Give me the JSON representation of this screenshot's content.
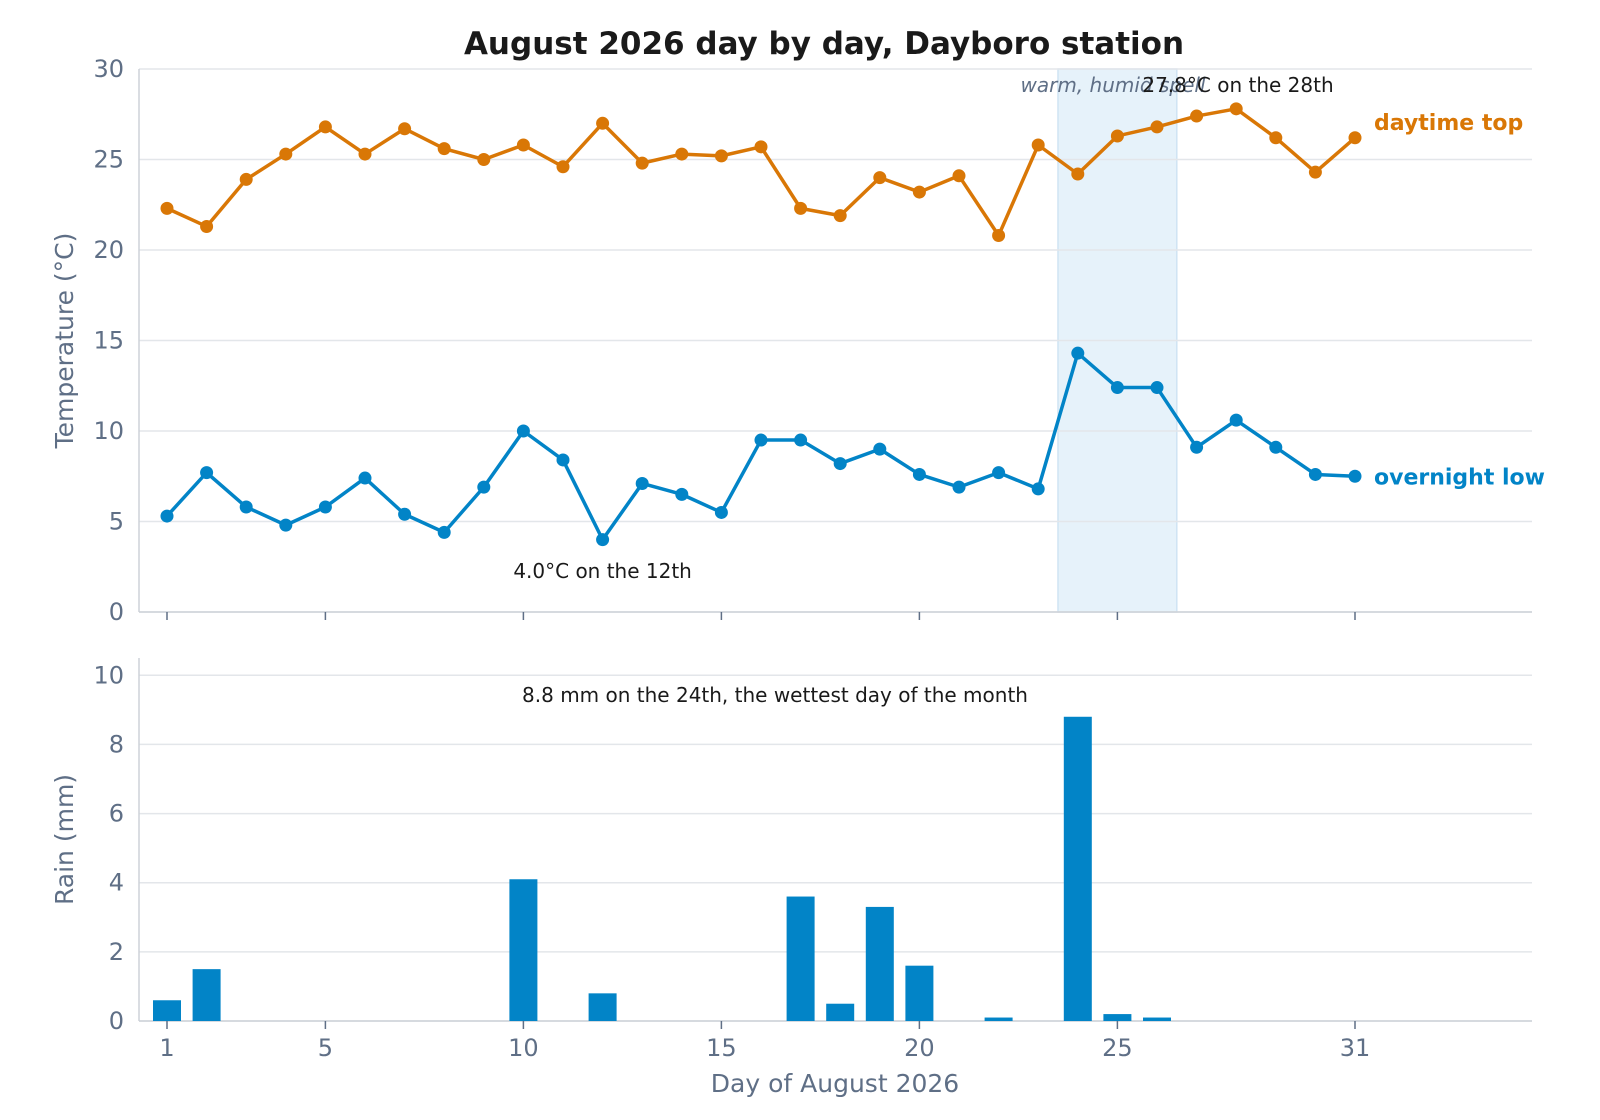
{
  "chart_data": [
    {
      "type": "line",
      "title": "August 2026 day by day, Dayboro station",
      "ylabel": "Temperature (°C)",
      "ylim": [
        0,
        30
      ],
      "yticks": [
        0,
        5,
        10,
        15,
        20,
        25,
        30
      ],
      "x": [
        1,
        2,
        3,
        4,
        5,
        6,
        7,
        8,
        9,
        10,
        11,
        12,
        13,
        14,
        15,
        16,
        17,
        18,
        19,
        20,
        21,
        22,
        23,
        24,
        25,
        26,
        27,
        28,
        29,
        30,
        31
      ],
      "series": [
        {
          "name": "daytime top",
          "color": "#d97706",
          "values": [
            22.3,
            21.3,
            23.9,
            25.3,
            26.8,
            25.3,
            26.7,
            25.6,
            25.0,
            25.8,
            24.6,
            27.0,
            24.8,
            25.3,
            25.2,
            25.7,
            22.3,
            21.9,
            24.0,
            23.2,
            24.1,
            20.8,
            25.8,
            24.2,
            26.3,
            26.8,
            27.4,
            27.8,
            26.2,
            24.3,
            26.2
          ]
        },
        {
          "name": "overnight low",
          "color": "#0284c7",
          "values": [
            5.3,
            7.7,
            5.8,
            4.8,
            5.8,
            7.4,
            5.4,
            4.4,
            6.9,
            10.0,
            8.4,
            4.0,
            7.1,
            6.5,
            5.5,
            9.5,
            9.5,
            8.2,
            9.0,
            7.6,
            6.9,
            7.7,
            6.8,
            14.3,
            12.4,
            12.4,
            9.1,
            10.6,
            9.1,
            7.6,
            7.5
          ]
        }
      ],
      "shaded_band": {
        "x_range": [
          23.5,
          26.5
        ],
        "label": "warm, humid spell",
        "color": "#e6f2fa"
      },
      "annotations": [
        {
          "text": "27.8°C on the 28th",
          "x": 28,
          "y": 27.8
        },
        {
          "text": "4.0°C on the 12th",
          "x": 12,
          "y": 4.0
        }
      ],
      "grid": true,
      "legend": "inline labels at right end of each line"
    },
    {
      "type": "bar",
      "xlabel": "Day of August 2026",
      "ylabel": "Rain (mm)",
      "ylim": [
        0,
        10.5
      ],
      "yticks": [
        0,
        2,
        4,
        6,
        8,
        10
      ],
      "xticks": [
        1,
        5,
        10,
        15,
        20,
        25,
        31
      ],
      "x": [
        1,
        2,
        3,
        4,
        5,
        6,
        7,
        8,
        9,
        10,
        11,
        12,
        13,
        14,
        15,
        16,
        17,
        18,
        19,
        20,
        21,
        22,
        23,
        24,
        25,
        26,
        27,
        28,
        29,
        30,
        31
      ],
      "values": [
        0.6,
        1.5,
        0,
        0,
        0,
        0,
        0,
        0,
        0,
        4.1,
        0,
        0.8,
        0,
        0,
        0,
        0,
        3.6,
        0.5,
        3.3,
        1.6,
        0,
        0.1,
        0,
        8.8,
        0.2,
        0.1,
        0,
        0,
        0,
        0,
        0
      ],
      "color": "#0284c7",
      "annotations": [
        {
          "text": "8.8 mm on the 24th, the wettest day of the month",
          "x": 24,
          "y": 8.8
        }
      ],
      "grid": true
    }
  ]
}
